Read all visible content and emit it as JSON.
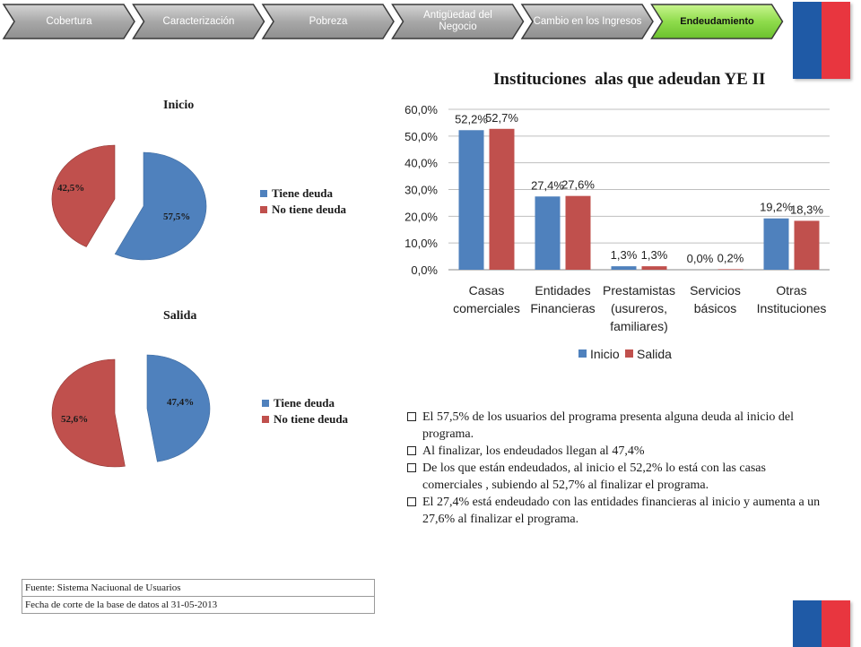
{
  "nav": {
    "steps": [
      {
        "label": "Cobertura"
      },
      {
        "label": "Caracterización"
      },
      {
        "label": "Pobreza"
      },
      {
        "label": "Antigüedad del Negocio"
      },
      {
        "label": "Cambio en los Ingresos"
      },
      {
        "label": "Endeudamiento",
        "active": true
      }
    ]
  },
  "pie_inicio": {
    "title": "Inicio",
    "slices": [
      {
        "label": "Tiene deuda",
        "value": 57.5,
        "value_label": "57,5%",
        "color": "#4f81bd"
      },
      {
        "label": "No tiene deuda",
        "value": 42.5,
        "value_label": "42,5%",
        "color": "#c0504d"
      }
    ]
  },
  "pie_salida": {
    "title": "Salida",
    "slices": [
      {
        "label": "Tiene deuda",
        "value": 47.4,
        "value_label": "47,4%",
        "color": "#4f81bd"
      },
      {
        "label": "No tiene deuda",
        "value": 52.6,
        "value_label": "52,6%",
        "color": "#c0504d"
      }
    ]
  },
  "chart_data": {
    "type": "bar",
    "title": "Instituciones  alas que adeudan YE II",
    "categories": [
      [
        "Casas",
        "comerciales"
      ],
      [
        "Entidades",
        "Financieras"
      ],
      [
        "Prestamistas",
        "(usureros,",
        "familiares)"
      ],
      [
        "Servicios",
        "básicos"
      ],
      [
        "Otras",
        "Instituciones"
      ]
    ],
    "series": [
      {
        "name": "Inicio",
        "color": "#4f81bd",
        "values": [
          52.2,
          27.4,
          1.3,
          0.0,
          19.2
        ],
        "labels": [
          "52,2%",
          "27,4%",
          "1,3%",
          "0,0%",
          "19,2%"
        ]
      },
      {
        "name": "Salida",
        "color": "#c0504d",
        "values": [
          52.7,
          27.6,
          1.3,
          0.2,
          18.3
        ],
        "labels": [
          "52,7%",
          "27,6%",
          "1,3%",
          "0,2%",
          "18,3%"
        ]
      }
    ],
    "ylim": [
      0,
      60
    ],
    "yticks": [
      "0,0%",
      "10,0%",
      "20,0%",
      "30,0%",
      "40,0%",
      "50,0%",
      "60,0%"
    ],
    "grid": true,
    "legend": "bottom"
  },
  "bullets": [
    "El 57,5% de los usuarios del programa presenta alguna deuda al inicio del programa.",
    "Al finalizar, los endeudados llegan al 47,4%",
    "De los que están endeudados, al inicio el 52,2% lo está con las casas comerciales , subiendo al 52,7% al finalizar el programa.",
    "El 27,4% está endeudado con las entidades financieras al inicio y aumenta a un 27,6% al finalizar el programa."
  ],
  "source": {
    "row1": "Fuente: Sistema Naciuonal de Usuarios",
    "row2": "Fecha de corte de la base de datos al 31-05-2013"
  },
  "colors": {
    "flag_blue": "#1f5aa6",
    "flag_red": "#e8363f",
    "nav_grey": "#a3a3a3",
    "nav_active": "#8ed94a"
  }
}
